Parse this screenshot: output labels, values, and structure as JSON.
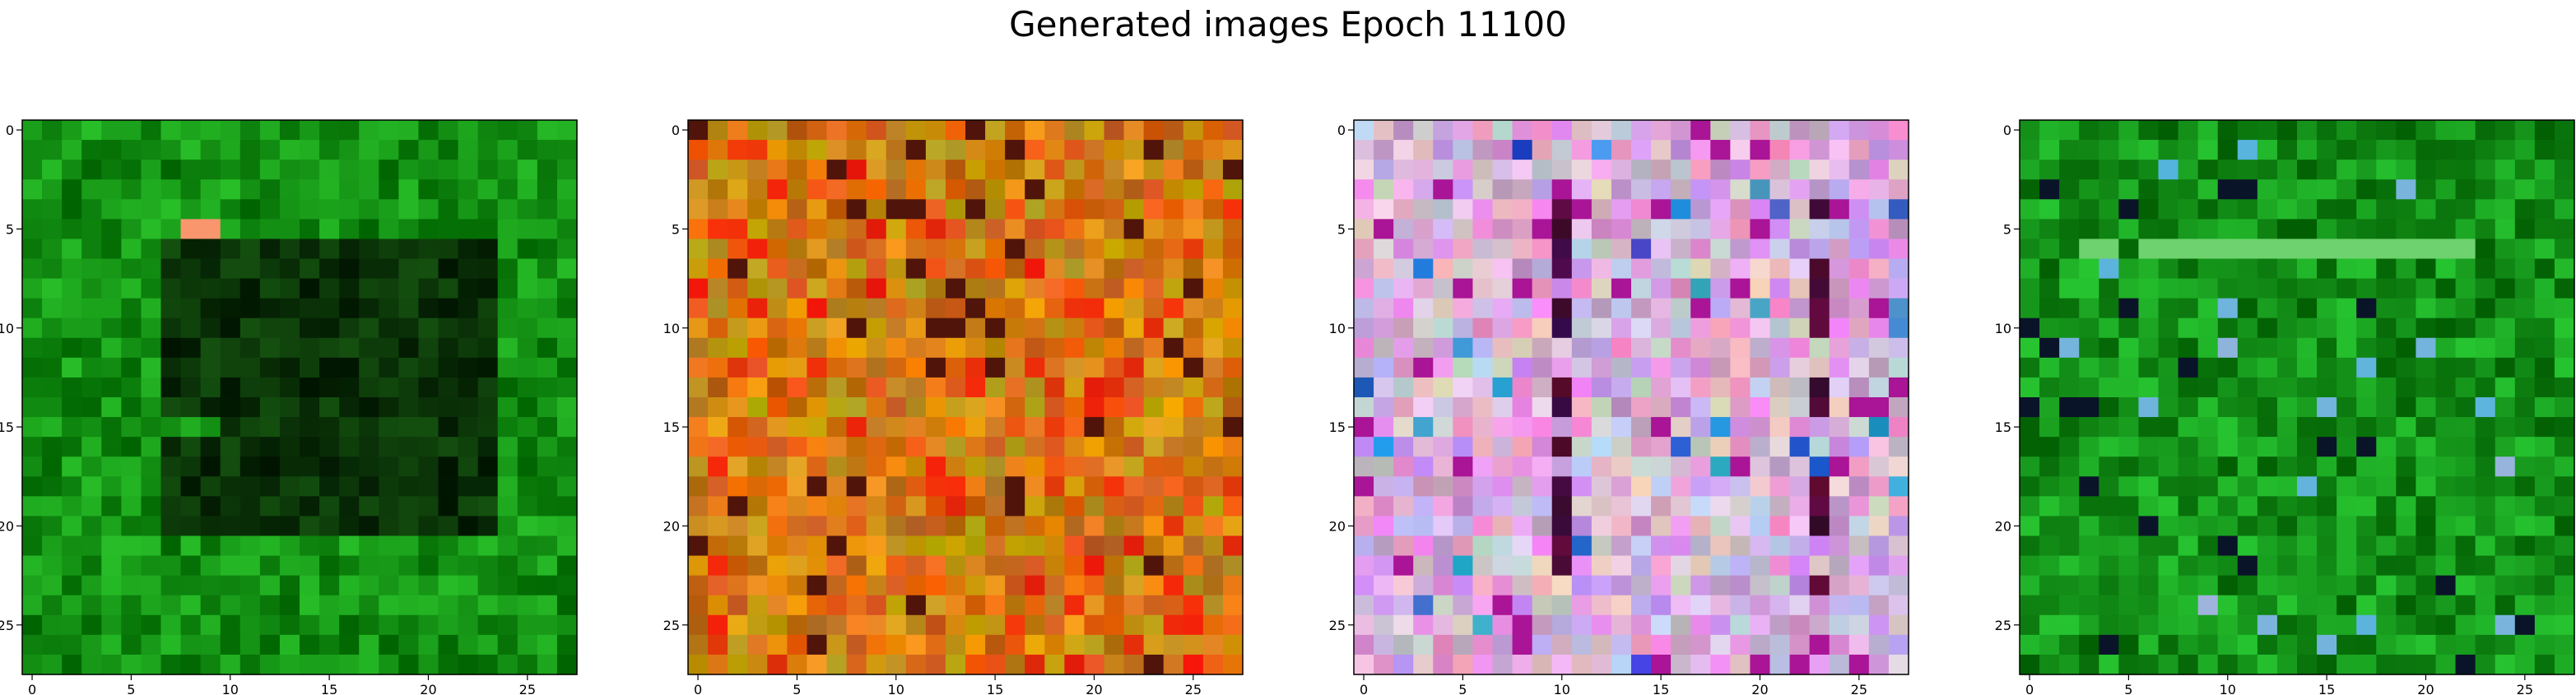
{
  "title": "Generated images Epoch 11100",
  "panels": [
    {
      "name": "generated-image-1",
      "palette": "green-dark",
      "accent": "#e8302a"
    },
    {
      "name": "generated-image-2",
      "palette": "orange-brown",
      "accent": "#d01010"
    },
    {
      "name": "generated-image-3",
      "palette": "pink-purple",
      "accent": "#202070"
    },
    {
      "name": "generated-image-4",
      "palette": "green",
      "accent": "#80d080"
    }
  ],
  "image_grid_size": 28,
  "ticks": [
    "0",
    "5",
    "10",
    "15",
    "20",
    "25"
  ]
}
